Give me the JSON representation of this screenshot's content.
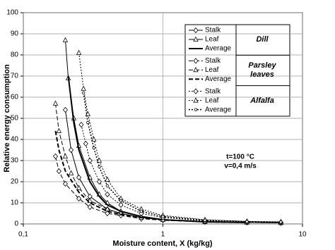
{
  "chart_data": {
    "type": "line",
    "y_label": "Relative energy consumption",
    "x_label": "Moisture content, X (kg/kg)",
    "xscale": "log",
    "xlim": [
      0.1,
      10
    ],
    "xticks": [
      {
        "value": 0.1,
        "label": "0,1"
      },
      1,
      10
    ],
    "ylim": [
      0,
      100
    ],
    "yticks": [
      0,
      10,
      20,
      30,
      40,
      50,
      60,
      70,
      80,
      90,
      100
    ],
    "grid": true,
    "annotation": [
      "t=100 °C",
      "v=0,4 m/s"
    ],
    "legend_groups": [
      {
        "label": "Dill",
        "series": [
          0,
          1,
          2
        ]
      },
      {
        "label": "Parsley leaves",
        "series": [
          3,
          4,
          5
        ]
      },
      {
        "label": "Alfalfa",
        "series": [
          6,
          7,
          8
        ]
      }
    ],
    "series": [
      {
        "name": "Stalk",
        "color": "#000000",
        "dash": "solid",
        "width": 1,
        "marker": "diamond",
        "x": [
          0.2,
          0.22,
          0.25,
          0.3,
          0.4,
          0.5,
          0.7,
          1,
          2,
          4,
          7
        ],
        "values": [
          54,
          35,
          22,
          13,
          7,
          5,
          3,
          2,
          1,
          0.7,
          0.5
        ]
      },
      {
        "name": "Leaf",
        "color": "#000000",
        "dash": "solid",
        "width": 1,
        "marker": "triangle",
        "x": [
          0.2,
          0.21,
          0.23,
          0.25,
          0.3,
          0.35,
          0.4,
          0.5,
          0.7,
          1,
          2,
          4,
          7
        ],
        "values": [
          87,
          69,
          50,
          37,
          22,
          14,
          10,
          6,
          3.5,
          2,
          1,
          0.7,
          0.5
        ]
      },
      {
        "name": "Average",
        "color": "#000000",
        "dash": "solid",
        "width": 2,
        "marker": "none",
        "x": [
          0.21,
          0.23,
          0.25,
          0.3,
          0.35,
          0.4,
          0.5,
          0.7,
          1,
          2,
          4
        ],
        "values": [
          70,
          48,
          35,
          20,
          13,
          9,
          6,
          3.5,
          2,
          1,
          0.7
        ]
      },
      {
        "name": "Stalk",
        "color": "#000000",
        "dash": "dashed",
        "width": 1,
        "marker": "diamond",
        "x": [
          0.17,
          0.18,
          0.2,
          0.25,
          0.3,
          0.4,
          0.5,
          0.7,
          1,
          2,
          4,
          7
        ],
        "values": [
          32,
          25,
          19,
          12,
          8,
          5,
          4,
          2.5,
          1.7,
          1,
          0.7,
          0.5
        ]
      },
      {
        "name": "Leaf",
        "color": "#000000",
        "dash": "dashed",
        "width": 1,
        "marker": "triangle",
        "x": [
          0.17,
          0.18,
          0.2,
          0.22,
          0.25,
          0.3,
          0.4,
          0.5,
          0.7,
          1,
          2,
          4,
          7
        ],
        "values": [
          57,
          44,
          32,
          24,
          17,
          11,
          7,
          5,
          3,
          2,
          1.2,
          0.8,
          0.6
        ]
      },
      {
        "name": "Average",
        "color": "#000000",
        "dash": "dashed",
        "width": 2,
        "marker": "none",
        "x": [
          0.17,
          0.18,
          0.2,
          0.25,
          0.3,
          0.4,
          0.5,
          0.7,
          1,
          2,
          4
        ],
        "values": [
          44,
          35,
          25,
          15,
          10,
          6,
          4.5,
          3,
          2,
          1,
          0.7
        ]
      },
      {
        "name": "Stalk",
        "color": "#000000",
        "dash": "dotted",
        "width": 1,
        "marker": "diamond",
        "x": [
          0.26,
          0.28,
          0.3,
          0.35,
          0.4,
          0.5,
          0.7,
          1,
          2,
          4,
          7
        ],
        "values": [
          47,
          38,
          30,
          20,
          14,
          9,
          5,
          3,
          1.5,
          1,
          0.8
        ]
      },
      {
        "name": "Leaf",
        "color": "#000000",
        "dash": "dotted",
        "width": 1,
        "marker": "triangle",
        "x": [
          0.25,
          0.27,
          0.29,
          0.32,
          0.35,
          0.4,
          0.5,
          0.7,
          1,
          2,
          4,
          7
        ],
        "values": [
          81,
          64,
          52,
          40,
          30,
          21,
          12,
          7,
          4,
          2,
          1.2,
          1
        ]
      },
      {
        "name": "Average",
        "color": "#000000",
        "dash": "dotted",
        "width": 1.5,
        "marker": "dot",
        "x": [
          0.27,
          0.29,
          0.32,
          0.35,
          0.4,
          0.5,
          0.7,
          1,
          2,
          4,
          7
        ],
        "values": [
          62,
          48,
          36,
          27,
          18,
          11,
          6,
          3.5,
          1.8,
          1.1,
          0.9
        ]
      }
    ]
  }
}
